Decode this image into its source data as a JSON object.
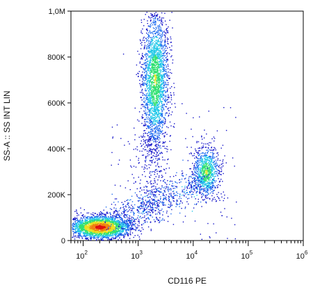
{
  "chart_data": {
    "type": "scatter",
    "style": "density-dot-plot",
    "xlabel": "CD116 PE",
    "ylabel": "SS-A :: SS INT LIN",
    "x_scale": "log",
    "xlim": [
      60,
      1000000
    ],
    "ylim": [
      0,
      1000000
    ],
    "x_ticks": [
      {
        "value": 100,
        "base": "10",
        "exp": "2"
      },
      {
        "value": 1000,
        "base": "10",
        "exp": "3"
      },
      {
        "value": 10000,
        "base": "10",
        "exp": "4"
      },
      {
        "value": 100000,
        "base": "10",
        "exp": "5"
      },
      {
        "value": 1000000,
        "base": "10",
        "exp": "6"
      }
    ],
    "y_ticks": [
      {
        "value": 0,
        "label": "0"
      },
      {
        "value": 200000,
        "label": "200K"
      },
      {
        "value": 400000,
        "label": "400K"
      },
      {
        "value": 600000,
        "label": "600K"
      },
      {
        "value": 800000,
        "label": "800K"
      },
      {
        "value": 1000000,
        "label": "1,0M"
      }
    ],
    "grid": false,
    "colormap": [
      "#1010c8",
      "#1e6cf0",
      "#20c8e8",
      "#30e070",
      "#e8e020",
      "#f08010",
      "#e01010"
    ],
    "populations": [
      {
        "x_center": 200,
        "x_spread_decades": 0.28,
        "y_center": 60000,
        "y_spread": 25000
      },
      {
        "x_center": 2000,
        "x_spread_decades": 0.12,
        "y_center": 700000,
        "y_spread": 150000
      },
      {
        "x_center": 17000,
        "x_spread_decades": 0.12,
        "y_center": 300000,
        "y_spread": 55000
      }
    ]
  }
}
